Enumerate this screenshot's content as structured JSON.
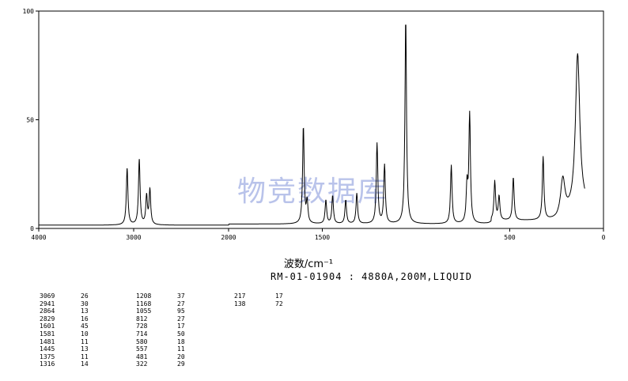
{
  "chart_data": {
    "type": "line",
    "x_axis": {
      "ticks": [
        4000,
        3000,
        2000,
        1500,
        500,
        0
      ],
      "tick_labels": [
        "4000",
        "3000",
        "2000",
        "1500",
        "500",
        "0"
      ]
    },
    "y_axis": {
      "ticks": [
        0,
        50,
        100
      ],
      "tick_labels": [
        "0",
        "50",
        "100"
      ],
      "ylim": [
        0,
        100
      ]
    },
    "xlabel": "波数/cm⁻¹",
    "sample_label": "RM-01-01904 : 4880A,200M,LIQUID",
    "watermark": "物竞数据库",
    "grid": false,
    "series": [
      {
        "peaks": [
          [
            3069,
            26
          ],
          [
            2941,
            30
          ],
          [
            2864,
            13
          ],
          [
            2829,
            16
          ],
          [
            1601,
            45
          ],
          [
            1581,
            10
          ],
          [
            1481,
            11
          ],
          [
            1445,
            13
          ],
          [
            1375,
            11
          ],
          [
            1316,
            14
          ],
          [
            1208,
            37
          ],
          [
            1168,
            27
          ],
          [
            1055,
            95
          ],
          [
            812,
            27
          ],
          [
            728,
            17
          ],
          [
            714,
            50
          ],
          [
            580,
            18
          ],
          [
            557,
            11
          ],
          [
            481,
            20
          ],
          [
            322,
            29
          ],
          [
            217,
            17
          ],
          [
            138,
            72
          ]
        ]
      }
    ],
    "peak_table": [
      {
        "wn": "3069",
        "int": "26"
      },
      {
        "wn": "2941",
        "int": "30"
      },
      {
        "wn": "2864",
        "int": "13"
      },
      {
        "wn": "2829",
        "int": "16"
      },
      {
        "wn": "1601",
        "int": "45"
      },
      {
        "wn": "1581",
        "int": "10"
      },
      {
        "wn": "1481",
        "int": "11"
      },
      {
        "wn": "1445",
        "int": "13"
      },
      {
        "wn": "1375",
        "int": "11"
      },
      {
        "wn": "1316",
        "int": "14"
      },
      {
        "wn": "1208",
        "int": "37"
      },
      {
        "wn": "1168",
        "int": "27"
      },
      {
        "wn": "1055",
        "int": "95"
      },
      {
        "wn": "812",
        "int": "27"
      },
      {
        "wn": "728",
        "int": "17"
      },
      {
        "wn": "714",
        "int": "50"
      },
      {
        "wn": "580",
        "int": "18"
      },
      {
        "wn": "557",
        "int": "11"
      },
      {
        "wn": "481",
        "int": "20"
      },
      {
        "wn": "322",
        "int": "29"
      },
      {
        "wn": "217",
        "int": "17"
      },
      {
        "wn": "138",
        "int": "72"
      }
    ]
  }
}
